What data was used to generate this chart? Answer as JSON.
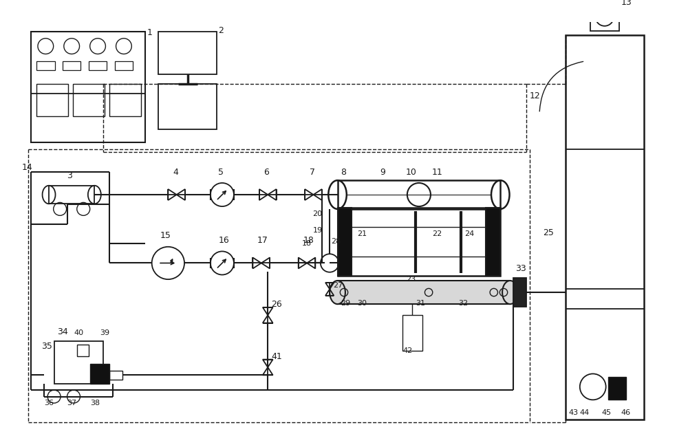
{
  "background": "#ffffff",
  "line_color": "#1a1a1a",
  "fig_width": 10.0,
  "fig_height": 6.31
}
